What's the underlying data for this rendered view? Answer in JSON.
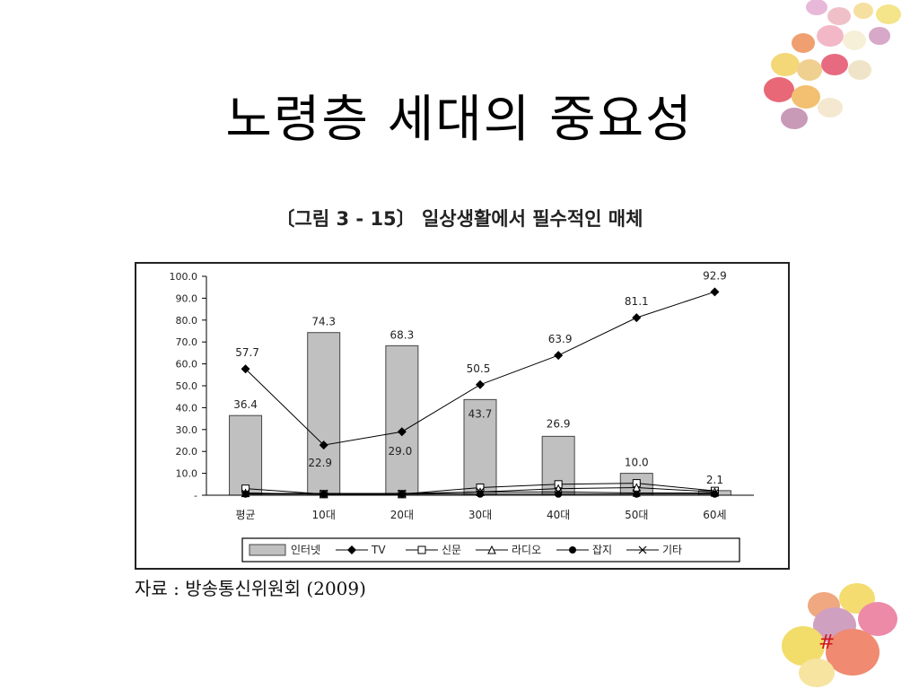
{
  "slide": {
    "title": "노령층 세대의 중요성",
    "figure_caption": "〔그림 3 - 15〕 일상생활에서 필수적인 매체",
    "source_note": "자료 : 방송통신위원회 (2009)",
    "slide_number": "#"
  },
  "chart_data": {
    "type": "bar",
    "categories": [
      "평균",
      "10대",
      "20대",
      "30대",
      "40대",
      "50대",
      "60세"
    ],
    "ylim": [
      0,
      100
    ],
    "yticks": [
      "-",
      "10.0",
      "20.0",
      "30.0",
      "40.0",
      "50.0",
      "60.0",
      "70.0",
      "80.0",
      "90.0",
      "100.0"
    ],
    "ytick_values": [
      0,
      10,
      20,
      30,
      40,
      50,
      60,
      70,
      80,
      90,
      100
    ],
    "legend_position": "bottom",
    "series": [
      {
        "name": "인터넷",
        "type": "bar",
        "values": [
          36.4,
          74.3,
          68.3,
          43.7,
          26.9,
          10.0,
          2.1
        ],
        "labels": [
          "36.4",
          "74.3",
          "68.3",
          "43.7",
          "26.9",
          "10.0",
          "2.1"
        ],
        "color": "#c0c0c0"
      },
      {
        "name": "TV",
        "type": "line",
        "marker": "diamond",
        "values": [
          57.7,
          22.9,
          29.0,
          50.5,
          63.9,
          81.1,
          92.9
        ],
        "labels": [
          "57.7",
          "22.9",
          "29.0",
          "50.5",
          "63.9",
          "81.1",
          "92.9"
        ],
        "color": "#000000"
      },
      {
        "name": "신문",
        "type": "line",
        "marker": "square",
        "values": [
          3.0,
          0.5,
          0.5,
          3.5,
          5.0,
          5.5,
          2.0
        ],
        "color": "#000000"
      },
      {
        "name": "라디오",
        "type": "line",
        "marker": "triangle",
        "values": [
          1.0,
          0.5,
          0.5,
          1.5,
          3.0,
          3.5,
          1.5
        ],
        "color": "#000000"
      },
      {
        "name": "잡지",
        "type": "line",
        "marker": "circle",
        "values": [
          0.5,
          0.5,
          0.5,
          0.5,
          0.5,
          0.5,
          0.5
        ],
        "color": "#000000"
      },
      {
        "name": "기타",
        "type": "line",
        "marker": "x",
        "values": [
          0.8,
          0.8,
          0.8,
          1.5,
          1.5,
          1.0,
          1.0
        ],
        "color": "#000000"
      }
    ]
  }
}
